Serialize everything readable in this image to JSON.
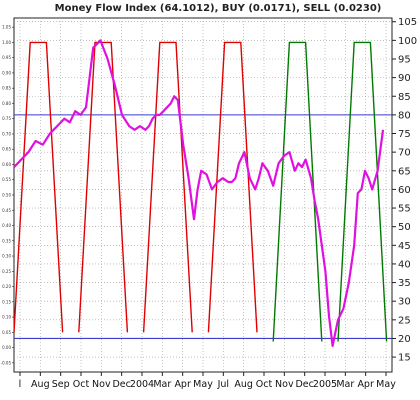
{
  "chart_data": {
    "type": "line",
    "title": "Money Flow Index (64.1012), BUY (0.0171), SELL (0.0230)",
    "y_right": {
      "ticks": [
        15,
        20,
        25,
        30,
        35,
        40,
        45,
        50,
        55,
        60,
        65,
        70,
        75,
        80,
        85,
        90,
        95,
        100,
        105
      ],
      "range": [
        11,
        106
      ]
    },
    "y_left": {
      "ticks": [
        "1.05",
        "1.00",
        "0.95",
        "0.90",
        "0.85",
        "0.80",
        "0.75",
        "0.70",
        "0.65",
        "0.60",
        "0.55",
        "0.50",
        "0.45",
        "0.40",
        "0.35",
        "0.30",
        "0.25",
        "0.20",
        "0.15",
        "0.10",
        "0.05",
        "0.00",
        "-0.05"
      ],
      "range": [
        -0.08,
        1.08
      ]
    },
    "x_labels": [
      "l",
      "Aug",
      "Sep",
      "Oct",
      "Nov",
      "Dec",
      "2004",
      "Mar",
      "Apr",
      "May",
      "Jul",
      "Aug",
      "Oct",
      "Nov",
      "Dec",
      "2005",
      "Mar",
      "Apr",
      "May"
    ],
    "reference_lines": [
      {
        "value": 80,
        "color": "#3a3ad0"
      },
      {
        "value": 20,
        "color": "#3a3ad0"
      }
    ],
    "series": [
      {
        "name": "Money Flow Index",
        "axis": "right",
        "color": "#e010e0",
        "x": [
          0,
          4,
          8,
          12,
          16,
          20,
          24,
          28,
          31,
          34,
          37,
          40,
          44,
          48,
          52,
          56,
          60,
          64,
          67,
          70,
          73,
          75,
          77,
          79,
          81,
          83,
          85,
          87,
          89,
          91,
          94,
          97,
          100,
          102,
          104,
          107,
          110,
          113,
          116,
          119,
          121,
          123,
          125,
          128,
          131,
          134,
          136,
          138,
          141,
          144,
          147,
          150,
          153,
          156,
          158,
          160,
          162,
          165,
          167,
          169,
          171,
          173,
          175,
          177,
          180,
          183,
          186,
          189,
          191,
          193,
          195,
          197,
          199,
          202,
          205
        ],
        "y": [
          66,
          68,
          70,
          73,
          72,
          75,
          77,
          79,
          78,
          81,
          80,
          82,
          98,
          100,
          95,
          88,
          80,
          77,
          76,
          77,
          76,
          77,
          79,
          80,
          80,
          81,
          82,
          83,
          85,
          84,
          72,
          63,
          52,
          60,
          65,
          64,
          60,
          62,
          63,
          62,
          62,
          63,
          67,
          70,
          63,
          60,
          63,
          67,
          65,
          61,
          67,
          69,
          70,
          65,
          67,
          66,
          68,
          63,
          57,
          52,
          45,
          38,
          26,
          18,
          25,
          28,
          35,
          45,
          59,
          60,
          65,
          63,
          60,
          65,
          76
        ],
        "x_unit": "trading-day index"
      },
      {
        "name": "SELL",
        "axis": "left",
        "color": "#e00000",
        "segments": [
          {
            "x": [
              0,
              2,
              4,
              6
            ],
            "y": [
              0.05,
              1.0,
              1.0,
              0.05
            ]
          },
          {
            "x": [
              8,
              10,
              12,
              14
            ],
            "y": [
              0.05,
              1.0,
              1.0,
              0.05
            ]
          },
          {
            "x": [
              16,
              18,
              20,
              22
            ],
            "y": [
              0.05,
              1.0,
              1.0,
              0.05
            ]
          },
          {
            "x": [
              24,
              26,
              28,
              30
            ],
            "y": [
              0.05,
              1.0,
              1.0,
              0.05
            ]
          }
        ]
      },
      {
        "name": "BUY",
        "axis": "left",
        "color": "#007a00",
        "segments": [
          {
            "x": [
              32,
              34,
              36,
              38
            ],
            "y": [
              0.02,
              1.0,
              1.0,
              0.02
            ]
          },
          {
            "x": [
              40,
              42,
              44,
              46
            ],
            "y": [
              0.02,
              1.0,
              1.0,
              0.02
            ]
          }
        ]
      }
    ],
    "grid": true
  }
}
